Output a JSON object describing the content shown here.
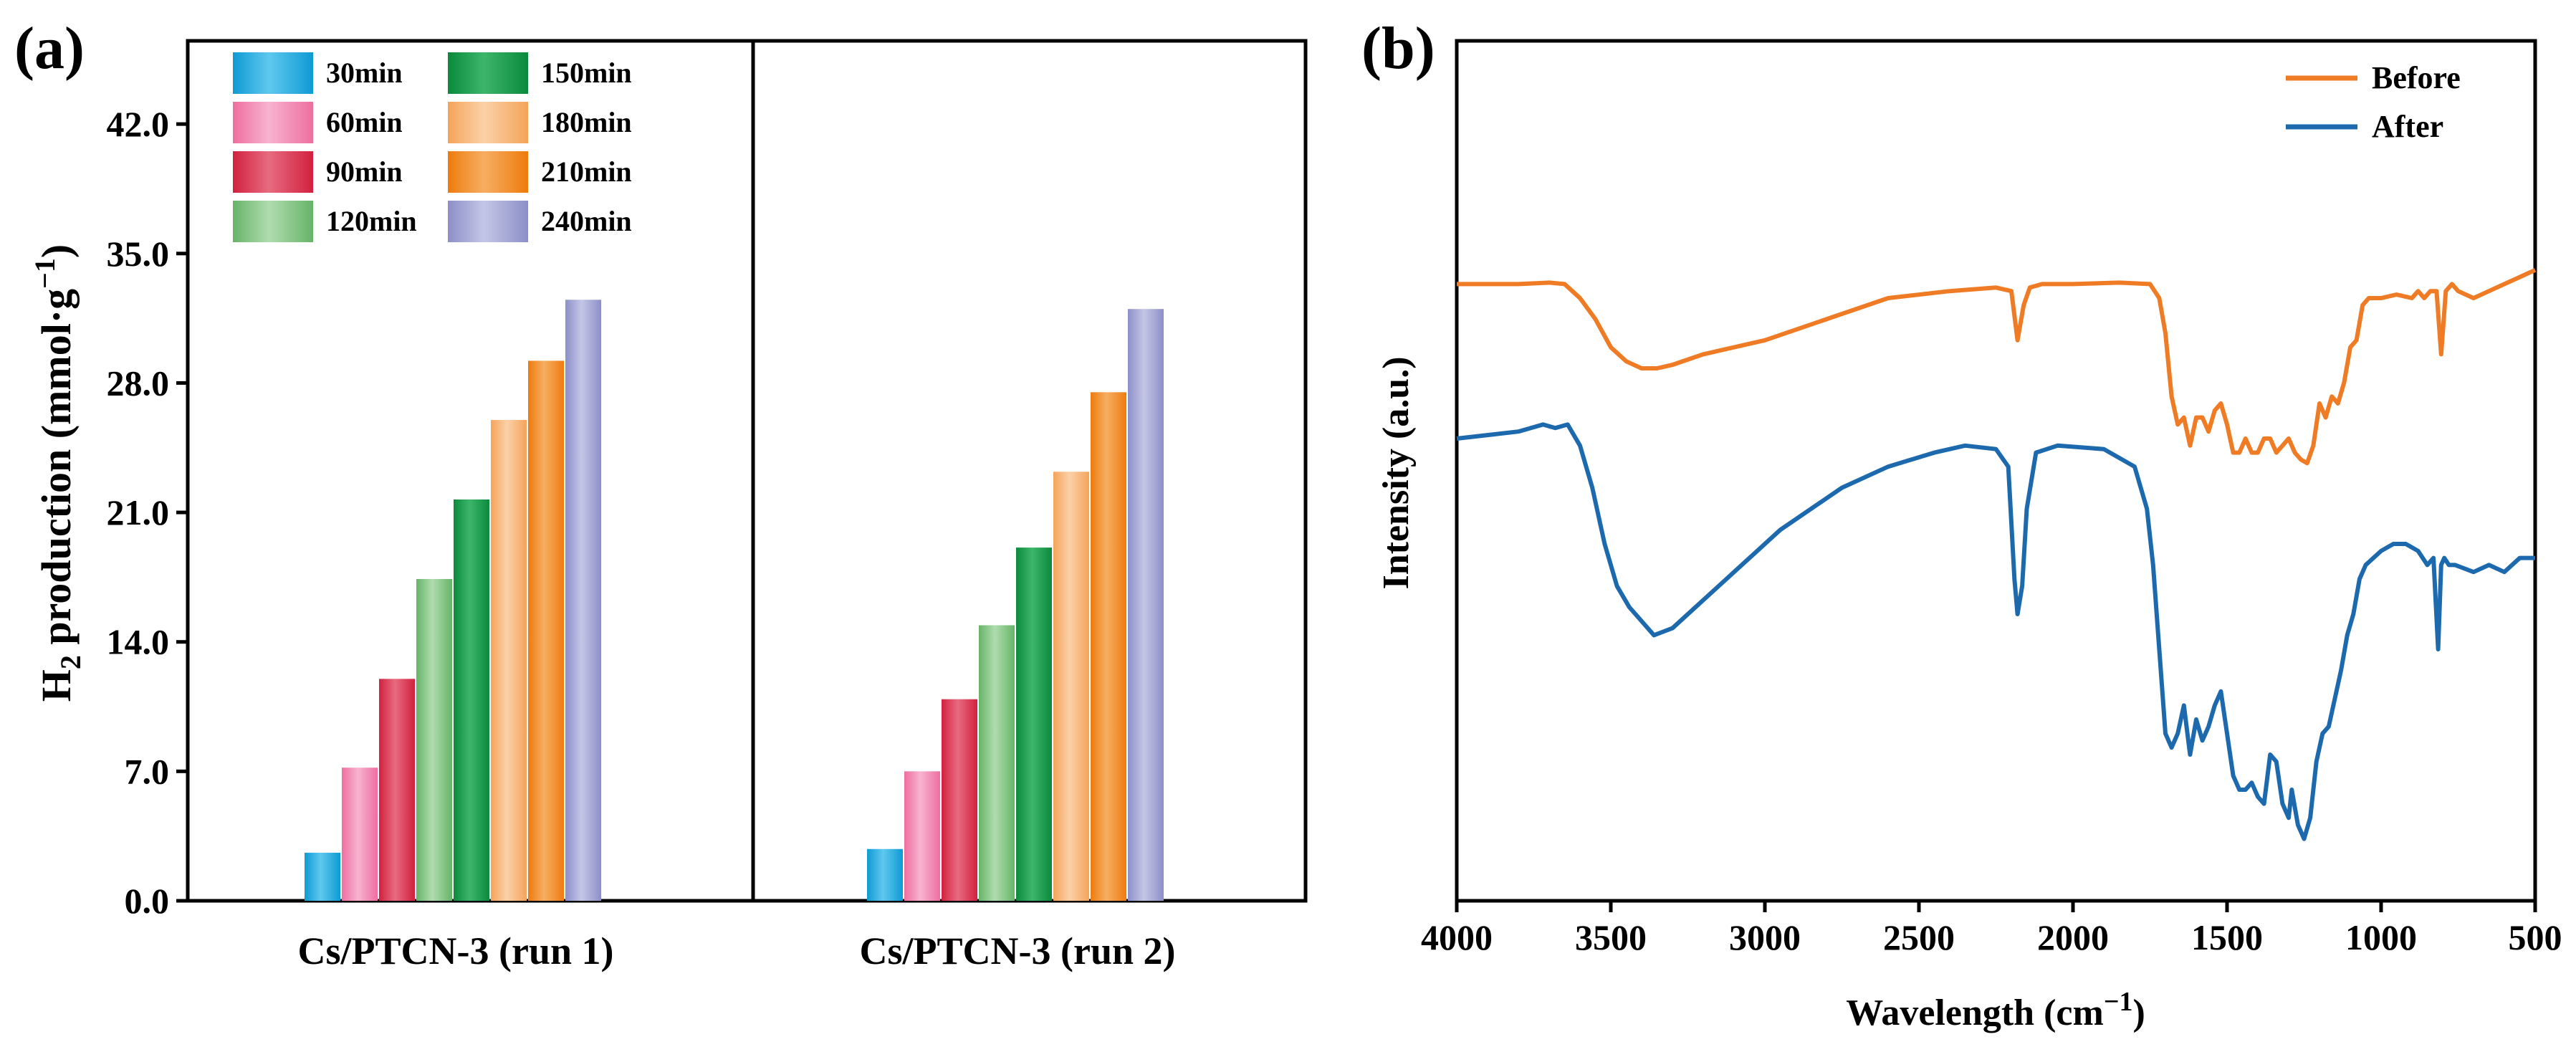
{
  "panel_a_label": "(a)",
  "panel_b_label": "(b)",
  "chart_data": [
    {
      "type": "bar",
      "panel": "(a)",
      "ylabel_main": "H",
      "ylabel_sub": "2",
      "ylabel_rest": " production (mmol·g",
      "ylabel_sup": "−1",
      "ylabel_end": ")",
      "ylim": [
        0,
        46.5
      ],
      "yticks": [
        0,
        7,
        14,
        21,
        28,
        35,
        42
      ],
      "ytick_labels": [
        "0.0",
        "7.0",
        "14.0",
        "21.0",
        "28.0",
        "35.0",
        "42.0"
      ],
      "groups": [
        "Cs/PTCN-3 (run 1)",
        "Cs/PTCN-3 (run 2)"
      ],
      "series": [
        {
          "name": "30min",
          "color_top": "#0e9ad4",
          "color_side": "#5fc8ee",
          "values": [
            2.6,
            2.8
          ]
        },
        {
          "name": "60min",
          "color_top": "#ee6ea0",
          "color_side": "#f7b3cf",
          "values": [
            7.2,
            7.0
          ]
        },
        {
          "name": "90min",
          "color_top": "#d2213f",
          "color_side": "#e76b7f",
          "values": [
            12.0,
            10.9
          ]
        },
        {
          "name": "120min",
          "color_top": "#66b468",
          "color_side": "#b0dcaf",
          "values": [
            17.4,
            14.9
          ]
        },
        {
          "name": "150min",
          "color_top": "#0b8a3c",
          "color_side": "#3db66a",
          "values": [
            21.7,
            19.1
          ]
        },
        {
          "name": "180min",
          "color_top": "#f4a45a",
          "color_side": "#fbd1a8",
          "values": [
            26.0,
            23.2
          ]
        },
        {
          "name": "210min",
          "color_top": "#ee7b0d",
          "color_side": "#f6ae62",
          "values": [
            29.2,
            27.5
          ]
        },
        {
          "name": "240min",
          "color_top": "#8c8fc8",
          "color_side": "#c4c6e6",
          "values": [
            32.5,
            32.0
          ]
        }
      ]
    },
    {
      "type": "line",
      "panel": "(b)",
      "xlabel": "Wavelength (cm",
      "xlabel_sup": "−1",
      "xlabel_end": ")",
      "ylabel": "Intensity (a.u.)",
      "xlim": [
        4000,
        500
      ],
      "xticks": [
        4000,
        3500,
        3000,
        2500,
        2000,
        1500,
        1000,
        500
      ],
      "ylim": [
        0,
        1
      ],
      "series": [
        {
          "name": "Before",
          "color": "#f07b25",
          "x": [
            4000,
            3800,
            3700,
            3650,
            3600,
            3550,
            3500,
            3450,
            3400,
            3350,
            3300,
            3200,
            3000,
            2800,
            2600,
            2400,
            2250,
            2200,
            2180,
            2160,
            2140,
            2100,
            2000,
            1850,
            1750,
            1720,
            1700,
            1680,
            1660,
            1640,
            1620,
            1600,
            1580,
            1560,
            1540,
            1520,
            1500,
            1480,
            1460,
            1440,
            1420,
            1400,
            1380,
            1360,
            1340,
            1320,
            1300,
            1280,
            1260,
            1240,
            1220,
            1200,
            1180,
            1160,
            1140,
            1120,
            1100,
            1080,
            1060,
            1040,
            1000,
            950,
            900,
            880,
            860,
            840,
            820,
            805,
            790,
            770,
            750,
            700,
            650,
            600,
            550,
            500
          ],
          "y": [
            0.82,
            0.82,
            0.822,
            0.82,
            0.8,
            0.77,
            0.73,
            0.71,
            0.7,
            0.7,
            0.705,
            0.72,
            0.74,
            0.77,
            0.8,
            0.81,
            0.815,
            0.81,
            0.74,
            0.79,
            0.815,
            0.82,
            0.82,
            0.822,
            0.82,
            0.8,
            0.75,
            0.66,
            0.62,
            0.63,
            0.59,
            0.63,
            0.63,
            0.61,
            0.64,
            0.65,
            0.62,
            0.58,
            0.58,
            0.6,
            0.58,
            0.58,
            0.6,
            0.6,
            0.58,
            0.59,
            0.6,
            0.58,
            0.57,
            0.565,
            0.59,
            0.65,
            0.63,
            0.66,
            0.65,
            0.68,
            0.73,
            0.74,
            0.79,
            0.8,
            0.8,
            0.805,
            0.8,
            0.81,
            0.8,
            0.81,
            0.81,
            0.72,
            0.81,
            0.82,
            0.81,
            0.8,
            0.81,
            0.82,
            0.83,
            0.84
          ]
        },
        {
          "name": "After",
          "color": "#1c6aad",
          "x": [
            4000,
            3900,
            3800,
            3720,
            3680,
            3640,
            3600,
            3560,
            3520,
            3480,
            3440,
            3400,
            3360,
            3330,
            3300,
            3250,
            3150,
            3050,
            2950,
            2850,
            2750,
            2600,
            2450,
            2350,
            2250,
            2210,
            2190,
            2180,
            2165,
            2150,
            2120,
            2050,
            1900,
            1800,
            1760,
            1740,
            1720,
            1700,
            1680,
            1660,
            1640,
            1620,
            1600,
            1580,
            1560,
            1540,
            1520,
            1500,
            1480,
            1460,
            1440,
            1420,
            1400,
            1380,
            1360,
            1340,
            1320,
            1300,
            1290,
            1270,
            1250,
            1230,
            1210,
            1190,
            1170,
            1150,
            1130,
            1110,
            1090,
            1070,
            1050,
            1000,
            960,
            920,
            880,
            850,
            830,
            815,
            805,
            795,
            780,
            760,
            700,
            650,
            600,
            550,
            500
          ],
          "y": [
            0.6,
            0.605,
            0.61,
            0.62,
            0.615,
            0.62,
            0.59,
            0.53,
            0.45,
            0.39,
            0.36,
            0.34,
            0.32,
            0.325,
            0.33,
            0.35,
            0.39,
            0.43,
            0.47,
            0.5,
            0.53,
            0.56,
            0.58,
            0.59,
            0.585,
            0.56,
            0.4,
            0.35,
            0.39,
            0.5,
            0.58,
            0.59,
            0.585,
            0.56,
            0.5,
            0.42,
            0.3,
            0.18,
            0.16,
            0.18,
            0.22,
            0.15,
            0.2,
            0.17,
            0.19,
            0.22,
            0.24,
            0.18,
            0.12,
            0.1,
            0.1,
            0.11,
            0.09,
            0.08,
            0.15,
            0.14,
            0.08,
            0.06,
            0.1,
            0.05,
            0.03,
            0.06,
            0.14,
            0.18,
            0.19,
            0.23,
            0.27,
            0.32,
            0.35,
            0.4,
            0.42,
            0.44,
            0.45,
            0.45,
            0.44,
            0.42,
            0.43,
            0.3,
            0.42,
            0.43,
            0.42,
            0.42,
            0.41,
            0.42,
            0.41,
            0.43,
            0.43
          ]
        }
      ]
    }
  ]
}
